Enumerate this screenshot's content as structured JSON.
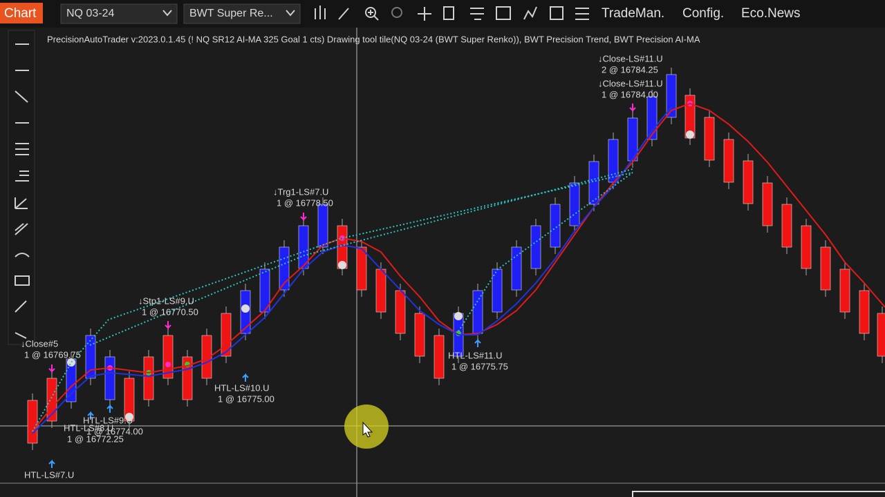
{
  "toolbar": {
    "chart_tab": "Chart",
    "instrument": "NQ 03-24",
    "chart_style": "BWT Super Re...",
    "menus": [
      "TradeMan.",
      "Config.",
      "Eco.News"
    ]
  },
  "chart": {
    "caption": "PrecisionAutoTrader v:2023.0.1.45 (! NQ SR12 AI-MA 325 Goal 1 cts) Drawing tool tile(NQ 03-24 (BWT Super Renko)), BWT Precision Trend, BWT Precision AI-MA",
    "annotations": [
      {
        "line1": "↓Close-LS#11.U",
        "line2": "2 @ 16784.25"
      },
      {
        "line1": "↓Close-LS#11.U",
        "line2": "1 @ 16784.00"
      },
      {
        "line1": "↓Trg1-LS#7.U",
        "line2": "1 @ 16778.50"
      },
      {
        "line1": "↓Stp1-LS#9.U",
        "line2": "1 @ 16770.50"
      },
      {
        "line1": "↓Close#5",
        "line2": "1 @ 16769.75"
      },
      {
        "line1": "HTL-LS#10.U",
        "line2": "1 @ 16775.00"
      },
      {
        "line1": "HTL-LS#11.U",
        "line2": "1 @ 16775.75"
      },
      {
        "line1": "HTL-LS#9.U",
        "line2": "1 @ 16774.00"
      },
      {
        "line1": "HTL-LS#8.U",
        "line2": "1 @ 16772.25"
      },
      {
        "line1": "HTL-LS#7.U"
      }
    ]
  }
}
